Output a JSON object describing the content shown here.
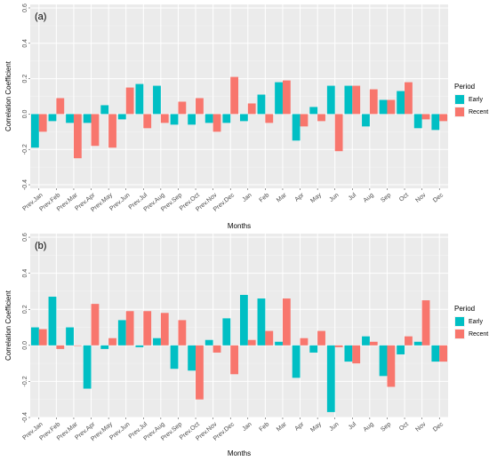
{
  "chart_data": [
    {
      "type": "bar",
      "panel_label": "(a)",
      "xlabel": "Months",
      "ylabel": "Correlation Coefficient",
      "ylim": [
        -0.42,
        0.62
      ],
      "yticks": [
        -0.4,
        -0.2,
        0.0,
        0.2,
        0.4,
        0.6
      ],
      "ytick_labels": [
        "-0.4",
        "-0.2",
        "0.0",
        "0.2",
        "0.4",
        "0.6"
      ],
      "grid": true,
      "legend_position": "right",
      "legend_title": "Period",
      "categories": [
        "Prev.Jan",
        "Prev.Feb",
        "Prev.Mar",
        "Prev.Apr",
        "Prev.May",
        "Prev.Jun",
        "Prev.Jul",
        "Prev.Aug",
        "Prev.Sep",
        "Prev.Oct",
        "Prev.Nov",
        "Prev.Dec",
        "Jan",
        "Feb",
        "Mar",
        "Apr",
        "May",
        "Jun",
        "Jul",
        "Aug",
        "Sep",
        "Oct",
        "Nov",
        "Dec"
      ],
      "series": [
        {
          "name": "Early",
          "color": "#00BFC4",
          "values": [
            -0.19,
            -0.04,
            -0.05,
            -0.05,
            0.05,
            -0.03,
            0.17,
            0.16,
            -0.06,
            -0.06,
            -0.05,
            -0.05,
            -0.04,
            0.11,
            0.18,
            -0.15,
            0.04,
            0.16,
            0.16,
            -0.07,
            0.08,
            0.13,
            -0.08,
            -0.09
          ]
        },
        {
          "name": "Recent",
          "color": "#F8766D",
          "values": [
            -0.1,
            0.09,
            -0.25,
            -0.18,
            -0.19,
            0.15,
            -0.08,
            -0.05,
            0.07,
            0.09,
            -0.1,
            0.21,
            0.06,
            -0.05,
            0.19,
            -0.07,
            -0.04,
            -0.21,
            0.16,
            0.14,
            0.08,
            0.18,
            -0.03,
            -0.04
          ]
        }
      ]
    },
    {
      "type": "bar",
      "panel_label": "(b)",
      "xlabel": "Months",
      "ylabel": "Correlation Coefficient",
      "ylim": [
        -0.4,
        0.62
      ],
      "yticks": [
        -0.4,
        -0.2,
        0.0,
        0.2,
        0.4,
        0.6
      ],
      "ytick_labels": [
        "-0.4",
        "-0.2",
        "0.0",
        "0.2",
        "0.4",
        "0.6"
      ],
      "grid": true,
      "legend_position": "right",
      "legend_title": "Period",
      "categories": [
        "Prev.Jan",
        "Prev.Feb",
        "Prev.Mar",
        "Prev.Apr",
        "Prev.May",
        "Prev.Jun",
        "Prev.Jul",
        "Prev.Aug",
        "Prev.Sep",
        "Prev.Oct",
        "Prev.Nov",
        "Prev.Dec",
        "Jan",
        "Feb",
        "Mar",
        "Apr",
        "May",
        "Jun",
        "Jul",
        "Aug",
        "Sep",
        "Oct",
        "Nov",
        "Dec"
      ],
      "series": [
        {
          "name": "Early",
          "color": "#00BFC4",
          "values": [
            0.1,
            0.27,
            0.1,
            -0.24,
            -0.02,
            0.14,
            -0.01,
            0.04,
            -0.13,
            -0.14,
            0.03,
            0.15,
            0.28,
            0.26,
            0.02,
            -0.18,
            -0.04,
            -0.37,
            -0.09,
            0.05,
            -0.17,
            -0.05,
            0.02,
            -0.09
          ]
        },
        {
          "name": "Recent",
          "color": "#F8766D",
          "values": [
            0.09,
            -0.02,
            0.0,
            0.23,
            0.04,
            0.19,
            0.19,
            0.18,
            0.14,
            -0.3,
            -0.04,
            -0.16,
            0.03,
            0.08,
            0.26,
            0.04,
            0.08,
            -0.01,
            -0.1,
            0.02,
            -0.23,
            0.05,
            0.25,
            -0.09
          ]
        }
      ]
    }
  ]
}
